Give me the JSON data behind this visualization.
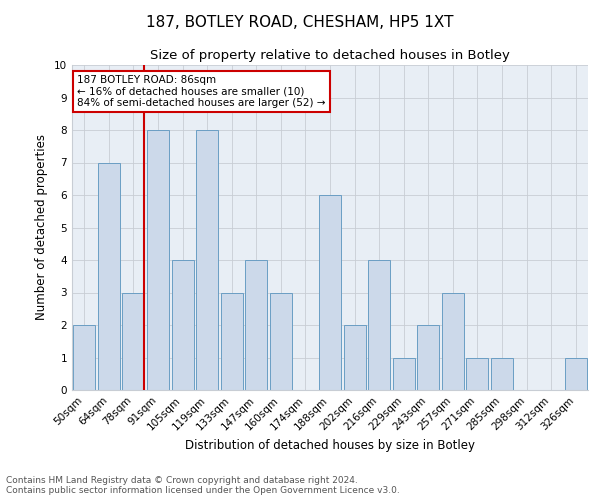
{
  "title1": "187, BOTLEY ROAD, CHESHAM, HP5 1XT",
  "title2": "Size of property relative to detached houses in Botley",
  "xlabel": "Distribution of detached houses by size in Botley",
  "ylabel": "Number of detached properties",
  "categories": [
    "50sqm",
    "64sqm",
    "78sqm",
    "91sqm",
    "105sqm",
    "119sqm",
    "133sqm",
    "147sqm",
    "160sqm",
    "174sqm",
    "188sqm",
    "202sqm",
    "216sqm",
    "229sqm",
    "243sqm",
    "257sqm",
    "271sqm",
    "285sqm",
    "298sqm",
    "312sqm",
    "326sqm"
  ],
  "values": [
    2,
    7,
    3,
    8,
    4,
    8,
    3,
    4,
    3,
    0,
    6,
    2,
    4,
    1,
    2,
    3,
    1,
    1,
    0,
    0,
    1
  ],
  "bar_color": "#ccd9ea",
  "bar_edge_color": "#6a9ec4",
  "highlight_line_index": 2,
  "highlight_line_color": "#cc0000",
  "annotation_text": "187 BOTLEY ROAD: 86sqm\n← 16% of detached houses are smaller (10)\n84% of semi-detached houses are larger (52) →",
  "annotation_box_edge_color": "#cc0000",
  "footnote": "Contains HM Land Registry data © Crown copyright and database right 2024.\nContains public sector information licensed under the Open Government Licence v3.0.",
  "ylim": [
    0,
    10
  ],
  "yticks": [
    0,
    1,
    2,
    3,
    4,
    5,
    6,
    7,
    8,
    9,
    10
  ],
  "grid_color": "#c8cdd4",
  "bg_color": "#e8eef5",
  "title1_fontsize": 11,
  "title2_fontsize": 9.5,
  "xlabel_fontsize": 8.5,
  "ylabel_fontsize": 8.5,
  "tick_fontsize": 7.5,
  "annot_fontsize": 7.5,
  "footnote_fontsize": 6.5
}
